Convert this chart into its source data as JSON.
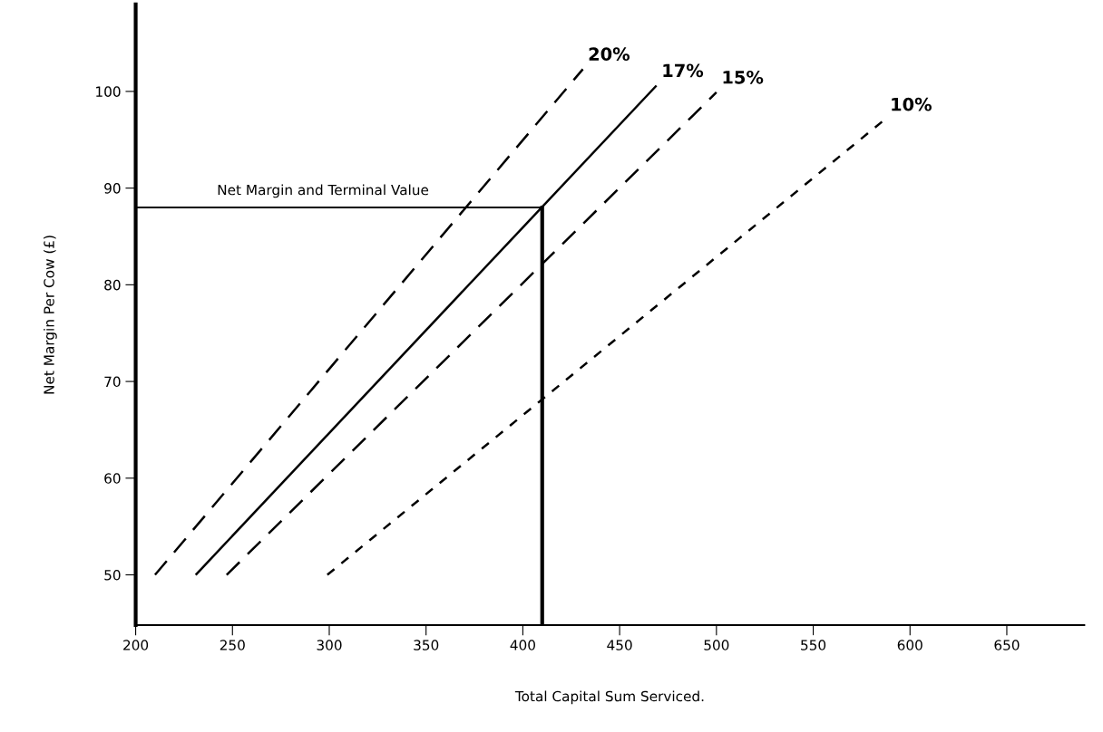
{
  "chart_data": {
    "type": "line",
    "xlabel": "Total Capital Sum Serviced.",
    "ylabel": "Net Margin Per Cow (£)",
    "xlim": [
      200,
      690
    ],
    "ylim": [
      44.8,
      109
    ],
    "xticks": [
      200,
      250,
      300,
      350,
      400,
      450,
      500,
      550,
      600,
      650
    ],
    "yticks": [
      50,
      60,
      70,
      80,
      90,
      100
    ],
    "grid": false,
    "legend": false,
    "marker": "none",
    "series": [
      {
        "name": "20%",
        "color": "#000000",
        "line_style": "dashed",
        "x": [
          210,
          431
        ],
        "values": [
          50,
          102.3
        ]
      },
      {
        "name": "17%",
        "color": "#000000",
        "line_style": "solid",
        "x": [
          231,
          469
        ],
        "values": [
          50,
          100.6
        ]
      },
      {
        "name": "15%",
        "color": "#000000",
        "line_style": "dashed",
        "x": [
          247,
          500
        ],
        "values": [
          50,
          99.9
        ]
      },
      {
        "name": "10%",
        "color": "#000000",
        "line_style": "dotted",
        "x": [
          299,
          587
        ],
        "values": [
          50,
          97.1
        ]
      }
    ],
    "ref_lines": [
      {
        "axis": "y",
        "value": 88,
        "label": "Net Margin and Terminal Value",
        "color": "#000000"
      },
      {
        "axis": "x",
        "value": 410,
        "label": null,
        "color": "#000000"
      }
    ]
  }
}
